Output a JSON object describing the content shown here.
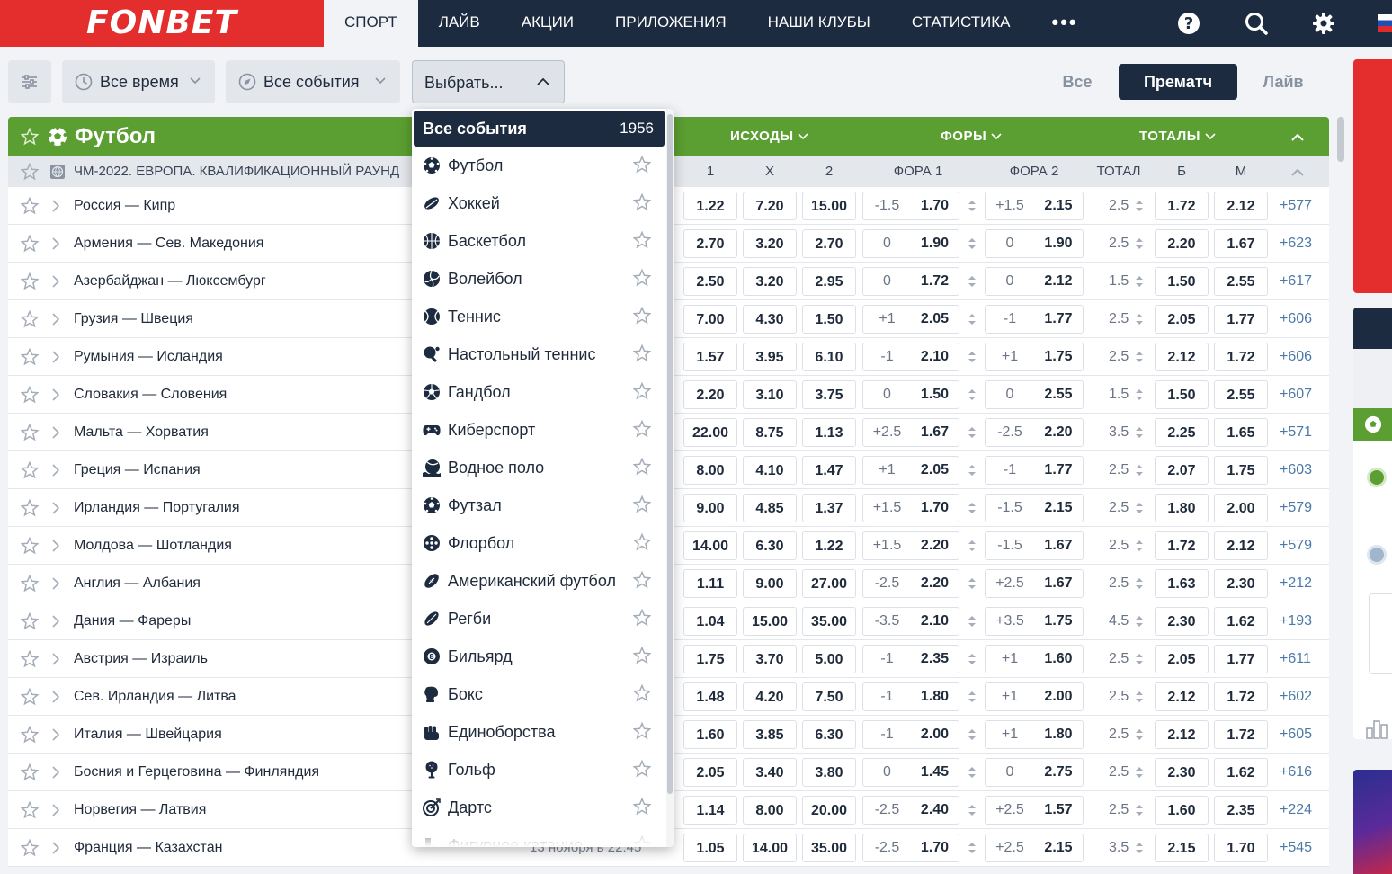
{
  "brand": "FONBET",
  "nav": [
    "СПОРТ",
    "ЛАЙВ",
    "АКЦИИ",
    "ПРИЛОЖЕНИЯ",
    "НАШИ КЛУБЫ",
    "СТАТИСТИКА"
  ],
  "nav_more": "•••",
  "filters": {
    "time": "Все время",
    "events": "Все события",
    "select": "Выбрать..."
  },
  "modes": [
    "Все",
    "Прематч",
    "Лайв"
  ],
  "sport": {
    "title": "Футбол",
    "groups": [
      "ИСХОДЫ",
      "ФОРЫ",
      "ТОТАЛЫ"
    ]
  },
  "league": {
    "title": "ЧМ-2022. ЕВРОПА. КВАЛИФИКАЦИОННЫЙ РАУНД",
    "columns": [
      "1",
      "X",
      "2",
      "ФОРА 1",
      "ФОРА 2",
      "ТОТАЛ",
      "Б",
      "М"
    ]
  },
  "matches": [
    {
      "name": "Россия — Кипр",
      "o1": "1.22",
      "ox": "7.20",
      "o2": "15.00",
      "f1v": "-1.5",
      "f1": "1.70",
      "f2v": "+1.5",
      "f2": "2.15",
      "t": "2.5",
      "b": "1.72",
      "m": "2.12",
      "more": "+577"
    },
    {
      "name": "Армения — Сев. Македония",
      "o1": "2.70",
      "ox": "3.20",
      "o2": "2.70",
      "f1v": "0",
      "f1": "1.90",
      "f2v": "0",
      "f2": "1.90",
      "t": "2.5",
      "b": "2.20",
      "m": "1.67",
      "more": "+623"
    },
    {
      "name": "Азербайджан — Люксембург",
      "o1": "2.50",
      "ox": "3.20",
      "o2": "2.95",
      "f1v": "0",
      "f1": "1.72",
      "f2v": "0",
      "f2": "2.12",
      "t": "1.5",
      "b": "1.50",
      "m": "2.55",
      "more": "+617"
    },
    {
      "name": "Грузия — Швеция",
      "o1": "7.00",
      "ox": "4.30",
      "o2": "1.50",
      "f1v": "+1",
      "f1": "2.05",
      "f2v": "-1",
      "f2": "1.77",
      "t": "2.5",
      "b": "2.05",
      "m": "1.77",
      "more": "+606"
    },
    {
      "name": "Румыния — Исландия",
      "o1": "1.57",
      "ox": "3.95",
      "o2": "6.10",
      "f1v": "-1",
      "f1": "2.10",
      "f2v": "+1",
      "f2": "1.75",
      "t": "2.5",
      "b": "2.12",
      "m": "1.72",
      "more": "+606"
    },
    {
      "name": "Словакия — Словения",
      "o1": "2.20",
      "ox": "3.10",
      "o2": "3.75",
      "f1v": "0",
      "f1": "1.50",
      "f2v": "0",
      "f2": "2.55",
      "t": "1.5",
      "b": "1.50",
      "m": "2.55",
      "more": "+607"
    },
    {
      "name": "Мальта — Хорватия",
      "o1": "22.00",
      "ox": "8.75",
      "o2": "1.13",
      "f1v": "+2.5",
      "f1": "1.67",
      "f2v": "-2.5",
      "f2": "2.20",
      "t": "3.5",
      "b": "2.25",
      "m": "1.65",
      "more": "+571"
    },
    {
      "name": "Греция — Испания",
      "o1": "8.00",
      "ox": "4.10",
      "o2": "1.47",
      "f1v": "+1",
      "f1": "2.05",
      "f2v": "-1",
      "f2": "1.77",
      "t": "2.5",
      "b": "2.07",
      "m": "1.75",
      "more": "+603"
    },
    {
      "name": "Ирландия — Португалия",
      "o1": "9.00",
      "ox": "4.85",
      "o2": "1.37",
      "f1v": "+1.5",
      "f1": "1.70",
      "f2v": "-1.5",
      "f2": "2.15",
      "t": "2.5",
      "b": "1.80",
      "m": "2.00",
      "more": "+579"
    },
    {
      "name": "Молдова — Шотландия",
      "o1": "14.00",
      "ox": "6.30",
      "o2": "1.22",
      "f1v": "+1.5",
      "f1": "2.20",
      "f2v": "-1.5",
      "f2": "1.67",
      "t": "2.5",
      "b": "1.72",
      "m": "2.12",
      "more": "+579"
    },
    {
      "name": "Англия — Албания",
      "o1": "1.11",
      "ox": "9.00",
      "o2": "27.00",
      "f1v": "-2.5",
      "f1": "2.20",
      "f2v": "+2.5",
      "f2": "1.67",
      "t": "2.5",
      "b": "1.63",
      "m": "2.30",
      "more": "+212"
    },
    {
      "name": "Дания — Фареры",
      "o1": "1.04",
      "ox": "15.00",
      "o2": "35.00",
      "f1v": "-3.5",
      "f1": "2.10",
      "f2v": "+3.5",
      "f2": "1.75",
      "t": "4.5",
      "b": "2.30",
      "m": "1.62",
      "more": "+193"
    },
    {
      "name": "Австрия — Израиль",
      "o1": "1.75",
      "ox": "3.70",
      "o2": "5.00",
      "f1v": "-1",
      "f1": "2.35",
      "f2v": "+1",
      "f2": "1.60",
      "t": "2.5",
      "b": "2.05",
      "m": "1.77",
      "more": "+611"
    },
    {
      "name": "Сев. Ирландия — Литва",
      "o1": "1.48",
      "ox": "4.20",
      "o2": "7.50",
      "f1v": "-1",
      "f1": "1.80",
      "f2v": "+1",
      "f2": "2.00",
      "t": "2.5",
      "b": "2.12",
      "m": "1.72",
      "more": "+602"
    },
    {
      "name": "Италия — Швейцария",
      "o1": "1.60",
      "ox": "3.85",
      "o2": "6.30",
      "f1v": "-1",
      "f1": "2.00",
      "f2v": "+1",
      "f2": "1.80",
      "t": "2.5",
      "b": "2.12",
      "m": "1.72",
      "more": "+605"
    },
    {
      "name": "Босния и Герцеговина — Финляндия",
      "o1": "2.05",
      "ox": "3.40",
      "o2": "3.80",
      "f1v": "0",
      "f1": "1.45",
      "f2v": "0",
      "f2": "2.75",
      "t": "2.5",
      "b": "2.30",
      "m": "1.62",
      "more": "+616"
    },
    {
      "name": "Норвегия — Латвия",
      "o1": "1.14",
      "ox": "8.00",
      "o2": "20.00",
      "f1v": "-2.5",
      "f1": "2.40",
      "f2v": "+2.5",
      "f2": "1.57",
      "t": "2.5",
      "b": "1.60",
      "m": "2.35",
      "more": "+224"
    },
    {
      "name": "Франция — Казахстан",
      "date": "13 ноября в 22:45",
      "o1": "1.05",
      "ox": "14.00",
      "o2": "35.00",
      "f1v": "-2.5",
      "f1": "1.70",
      "f2v": "+2.5",
      "f2": "2.15",
      "t": "3.5",
      "b": "2.15",
      "m": "1.70",
      "more": "+545"
    }
  ],
  "dropdown": {
    "header": "Все события",
    "count": "1956",
    "items": [
      {
        "name": "Футбол",
        "icon": "soccer-ball-icon"
      },
      {
        "name": "Хоккей",
        "icon": "hockey-puck-icon"
      },
      {
        "name": "Баскетбол",
        "icon": "basketball-icon"
      },
      {
        "name": "Волейбол",
        "icon": "volleyball-icon"
      },
      {
        "name": "Теннис",
        "icon": "tennis-ball-icon"
      },
      {
        "name": "Настольный теннис",
        "icon": "table-tennis-icon"
      },
      {
        "name": "Гандбол",
        "icon": "handball-icon"
      },
      {
        "name": "Киберспорт",
        "icon": "gamepad-icon"
      },
      {
        "name": "Водное поло",
        "icon": "water-polo-icon"
      },
      {
        "name": "Футзал",
        "icon": "futsal-ball-icon"
      },
      {
        "name": "Флорбол",
        "icon": "floorball-icon"
      },
      {
        "name": "Американский футбол",
        "icon": "american-football-icon"
      },
      {
        "name": "Регби",
        "icon": "rugby-ball-icon"
      },
      {
        "name": "Бильярд",
        "icon": "billiard-ball-icon"
      },
      {
        "name": "Бокс",
        "icon": "boxing-glove-icon"
      },
      {
        "name": "Единоборства",
        "icon": "fist-icon"
      },
      {
        "name": "Гольф",
        "icon": "golf-ball-icon"
      },
      {
        "name": "Дартс",
        "icon": "darts-icon"
      },
      {
        "name": "Фигурное катание",
        "icon": "skate-icon"
      }
    ]
  },
  "colors": {
    "header": "#1c2b3f",
    "brand": "#e42d2d",
    "sport": "#5b9e32",
    "accent_more": "#4b79a8"
  }
}
